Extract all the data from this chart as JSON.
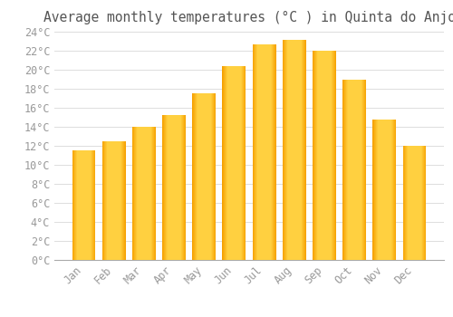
{
  "title": "Average monthly temperatures (°C ) in Quinta do Anjo",
  "months": [
    "Jan",
    "Feb",
    "Mar",
    "Apr",
    "May",
    "Jun",
    "Jul",
    "Aug",
    "Sep",
    "Oct",
    "Nov",
    "Dec"
  ],
  "values": [
    11.5,
    12.5,
    14.0,
    15.2,
    17.5,
    20.4,
    22.7,
    23.1,
    22.0,
    19.0,
    14.8,
    12.0
  ],
  "bar_color_center": "#FFD040",
  "bar_color_edge": "#F5A000",
  "background_color": "#FFFFFF",
  "grid_color": "#DDDDDD",
  "title_color": "#555555",
  "tick_label_color": "#999999",
  "ylim": [
    0,
    24
  ],
  "ytick_step": 2,
  "title_fontsize": 10.5,
  "tick_fontsize": 8.5,
  "bar_width": 0.78
}
